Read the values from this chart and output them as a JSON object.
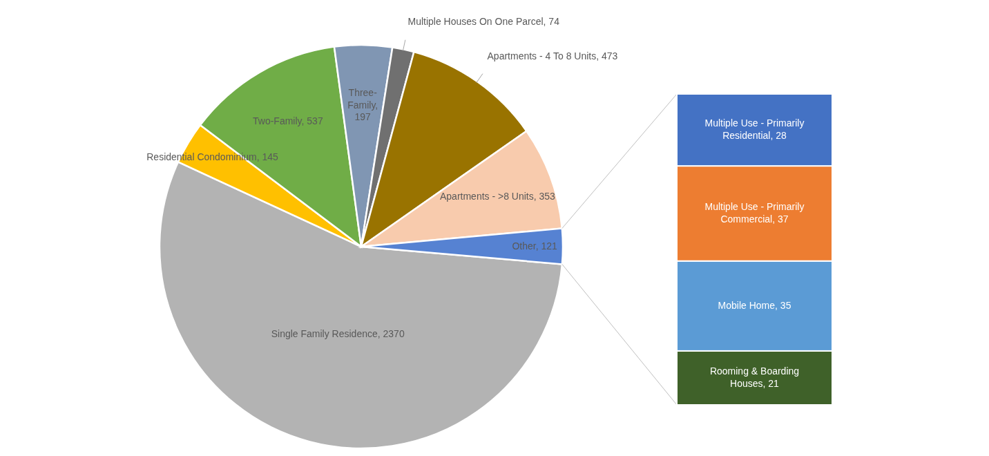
{
  "chart_data": [
    {
      "type": "pie",
      "categories": [
        "Single Family Residence",
        "Residential Condominium",
        "Two-Family",
        "Three-Family",
        "Multiple Houses On One Parcel",
        "Apartments - 4 To 8 Units",
        "Apartments - >8 Units",
        "Other"
      ],
      "values": [
        2370,
        145,
        537,
        197,
        74,
        473,
        353,
        121
      ],
      "value_labels": [
        ", 2370",
        ", 145",
        ", 537",
        ", 197",
        ", 74",
        ", 473",
        ", 353",
        ", 121"
      ],
      "colors": [
        "#b3b3b3",
        "#ffc000",
        "#70ad47",
        "#8096b3",
        "#707070",
        "#997300",
        "#f8cbad",
        "#5682d2"
      ],
      "legend": false
    },
    {
      "type": "bar",
      "stacked": true,
      "categories": [
        null
      ],
      "legend": false,
      "series": [
        {
          "name": "Rooming & Boarding Houses",
          "color": "#3f6129",
          "values": [
            21
          ],
          "value_labels": [
            ", 21"
          ]
        },
        {
          "name": "Mobile Home",
          "color": "#5b9bd5",
          "values": [
            35
          ],
          "value_labels": [
            ", 35"
          ]
        },
        {
          "name": "Multiple Use - Primarily Commercial",
          "color": "#ed7d31",
          "values": [
            37
          ],
          "value_labels": [
            ", 37"
          ]
        },
        {
          "name": "Multiple Use - Primarily Residential",
          "color": "#4472c4",
          "values": [
            28
          ],
          "value_labels": [
            ", 28"
          ]
        }
      ]
    }
  ]
}
